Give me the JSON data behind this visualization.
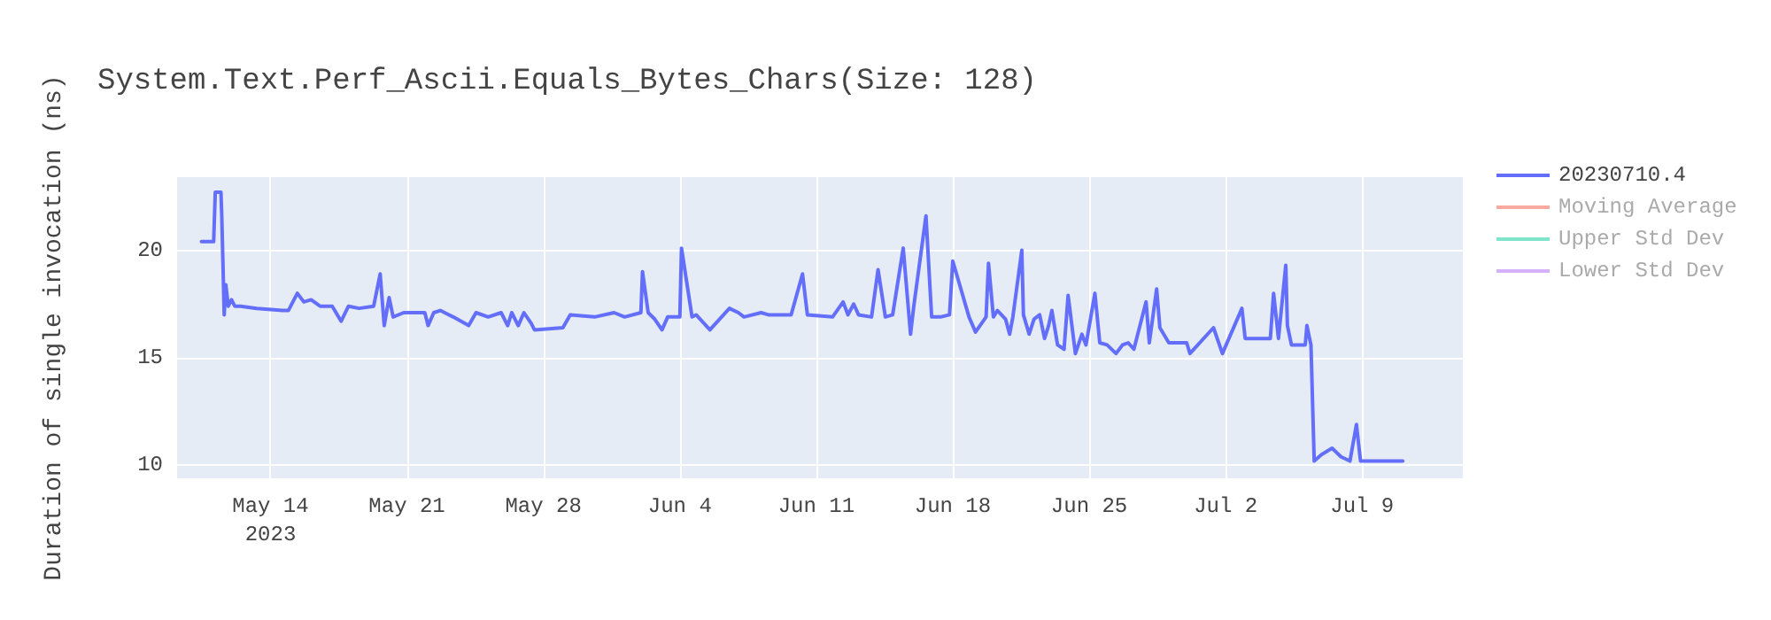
{
  "chart_data": {
    "type": "line",
    "title": "System.Text.Perf_Ascii.Equals_Bytes_Chars(Size: 128)",
    "ylabel": "Duration of single invocation (ns)",
    "x": [
      "2023-05-10T11:00",
      "2023-05-11T02:00",
      "2023-05-11T04:00",
      "2023-05-11T11:00",
      "2023-05-11T12:00",
      "2023-05-11T15:00",
      "2023-05-11T17:00",
      "2023-05-11T20:00",
      "2023-05-12T00:00",
      "2023-05-12T04:00",
      "2023-05-12T11:00",
      "2023-05-13T07:00",
      "2023-05-14T15:00",
      "2023-05-14T22:00",
      "2023-05-15T09:00",
      "2023-05-15T17:00",
      "2023-05-16T02:00",
      "2023-05-16T13:00",
      "2023-05-17T04:00",
      "2023-05-17T15:00",
      "2023-05-18T00:00",
      "2023-05-18T13:00",
      "2023-05-19T07:00",
      "2023-05-19T15:00",
      "2023-05-19T20:00",
      "2023-05-20T02:00",
      "2023-05-20T07:00",
      "2023-05-20T20:00",
      "2023-05-21T22:00",
      "2023-05-22T02:00",
      "2023-05-22T09:00",
      "2023-05-22T17:00",
      "2023-05-23T09:00",
      "2023-05-24T04:00",
      "2023-05-24T13:00",
      "2023-05-25T04:00",
      "2023-05-25T20:00",
      "2023-05-26T04:00",
      "2023-05-26T09:00",
      "2023-05-26T17:00",
      "2023-05-27T00:00",
      "2023-05-27T09:00",
      "2023-05-27T13:00",
      "2023-05-29T00:00",
      "2023-05-29T09:00",
      "2023-05-30T15:00",
      "2023-05-31T15:00",
      "2023-06-01T04:00",
      "2023-06-02T00:00",
      "2023-06-02T02:00",
      "2023-06-02T09:00",
      "2023-06-02T17:00",
      "2023-06-03T02:00",
      "2023-06-03T09:00",
      "2023-06-04T00:00",
      "2023-06-04T02:00",
      "2023-06-04T15:00",
      "2023-06-04T20:00",
      "2023-06-05T13:00",
      "2023-06-06T13:00",
      "2023-06-07T00:00",
      "2023-06-07T07:00",
      "2023-06-08T04:00",
      "2023-06-08T13:00",
      "2023-06-09T17:00",
      "2023-06-10T07:00",
      "2023-06-10T13:00",
      "2023-06-11T20:00",
      "2023-06-12T09:00",
      "2023-06-12T15:00",
      "2023-06-12T22:00",
      "2023-06-13T04:00",
      "2023-06-13T20:00",
      "2023-06-14T04:00",
      "2023-06-14T13:00",
      "2023-06-14T22:00",
      "2023-06-15T11:00",
      "2023-06-15T20:00",
      "2023-06-16T00:00",
      "2023-06-16T15:00",
      "2023-06-16T22:00",
      "2023-06-17T09:00",
      "2023-06-17T20:00",
      "2023-06-18T00:00",
      "2023-06-18T20:00",
      "2023-06-19T04:00",
      "2023-06-19T17:00",
      "2023-06-19T20:00",
      "2023-06-20T02:00",
      "2023-06-20T07:00",
      "2023-06-20T17:00",
      "2023-06-20T22:00",
      "2023-06-21T02:00",
      "2023-06-21T13:00",
      "2023-06-21T15:00",
      "2023-06-21T22:00",
      "2023-06-22T04:00",
      "2023-06-22T11:00",
      "2023-06-22T17:00",
      "2023-06-22T22:00",
      "2023-06-23T02:00",
      "2023-06-23T09:00",
      "2023-06-23T17:00",
      "2023-06-23T22:00",
      "2023-06-24T07:00",
      "2023-06-24T15:00",
      "2023-06-24T20:00",
      "2023-06-25T07:00",
      "2023-06-25T13:00",
      "2023-06-25T22:00",
      "2023-06-26T09:00",
      "2023-06-26T17:00",
      "2023-06-27T00:00",
      "2023-06-27T07:00",
      "2023-06-27T22:00",
      "2023-06-28T02:00",
      "2023-06-28T11:00",
      "2023-06-28T15:00",
      "2023-06-29T02:00",
      "2023-06-30T00:00",
      "2023-06-30T04:00",
      "2023-07-01T09:00",
      "2023-07-01T20:00",
      "2023-07-02T20:00",
      "2023-07-03T00:00",
      "2023-07-04T07:00",
      "2023-07-04T11:00",
      "2023-07-04T17:00",
      "2023-07-05T02:00",
      "2023-07-05T04:00",
      "2023-07-05T09:00",
      "2023-07-06T02:00",
      "2023-07-06T04:00",
      "2023-07-06T09:00",
      "2023-07-06T13:00",
      "2023-07-06T22:00",
      "2023-07-07T11:00",
      "2023-07-07T22:00",
      "2023-07-08T09:00",
      "2023-07-08T17:00",
      "2023-07-08T22:00",
      "2023-07-11T02:00"
    ],
    "series": [
      {
        "name": "20230710.4",
        "color": "#636efa",
        "values": [
          20.4,
          20.4,
          22.7,
          22.7,
          21.6,
          17.0,
          18.4,
          17.4,
          17.7,
          17.4,
          17.4,
          17.3,
          17.2,
          17.2,
          18.0,
          17.6,
          17.7,
          17.4,
          17.4,
          16.7,
          17.4,
          17.3,
          17.4,
          18.9,
          16.5,
          17.8,
          16.9,
          17.1,
          17.1,
          16.5,
          17.1,
          17.2,
          16.9,
          16.5,
          17.1,
          16.9,
          17.1,
          16.5,
          17.1,
          16.5,
          17.1,
          16.6,
          16.3,
          16.4,
          17.0,
          16.9,
          17.1,
          16.9,
          17.1,
          19.0,
          17.1,
          16.8,
          16.3,
          16.9,
          16.9,
          20.1,
          16.9,
          17.0,
          16.3,
          17.3,
          17.1,
          16.9,
          17.1,
          17.0,
          17.0,
          18.9,
          17.0,
          16.9,
          17.6,
          17.0,
          17.5,
          17.0,
          16.9,
          19.1,
          16.9,
          17.0,
          20.1,
          16.1,
          17.4,
          21.6,
          16.9,
          16.9,
          17.0,
          19.5,
          16.9,
          16.2,
          16.9,
          19.4,
          16.9,
          17.2,
          16.8,
          16.1,
          16.9,
          20.0,
          17.0,
          16.1,
          16.8,
          17.0,
          15.9,
          16.5,
          17.2,
          15.6,
          15.4,
          17.9,
          15.2,
          16.1,
          15.6,
          18.0,
          15.7,
          15.6,
          15.2,
          15.6,
          15.7,
          15.4,
          17.6,
          15.7,
          18.2,
          16.4,
          15.7,
          15.7,
          15.2,
          16.4,
          15.2,
          17.3,
          15.9,
          15.9,
          18.0,
          15.9,
          19.3,
          16.5,
          15.6,
          15.6,
          16.5,
          15.6,
          10.2,
          10.5,
          10.8,
          10.4,
          10.2,
          11.9,
          10.2,
          10.2
        ]
      },
      {
        "name": "Moving Average",
        "color": "#ef553b",
        "values": [
          null,
          null,
          null,
          null,
          null,
          null,
          null,
          null,
          null,
          null,
          null,
          null,
          null,
          null,
          null,
          null,
          null,
          null,
          null,
          null,
          null,
          null,
          null,
          null,
          null,
          null,
          null,
          null,
          null,
          null,
          null,
          null,
          null,
          null,
          null,
          null,
          null,
          null,
          null,
          null,
          null,
          null,
          null,
          null,
          null,
          null,
          null,
          null,
          null,
          null,
          null,
          null,
          null,
          null,
          null,
          null,
          null,
          null,
          null,
          null,
          null,
          null,
          null,
          null,
          null,
          null,
          null,
          null,
          null,
          null,
          null,
          null,
          null,
          null,
          null,
          null,
          null,
          null,
          null,
          null,
          null,
          null,
          null,
          null,
          null,
          null,
          null,
          null,
          null,
          null,
          null,
          null,
          null,
          null,
          null,
          null,
          null,
          null,
          null,
          null,
          null,
          null,
          null,
          null,
          null,
          null,
          null,
          null,
          null,
          null,
          null,
          null,
          null,
          null,
          null,
          null,
          null,
          null,
          null,
          null,
          null,
          null,
          null,
          null,
          null,
          null,
          null,
          null,
          null,
          null,
          null,
          null,
          null,
          null,
          null,
          null,
          null,
          null,
          null,
          null,
          null,
          null
        ]
      },
      {
        "name": "Upper Std Dev",
        "color": "#00cc96",
        "values": [
          null,
          null,
          null,
          null,
          null,
          null,
          null,
          null,
          null,
          null,
          null,
          null,
          null,
          null,
          null,
          null,
          null,
          null,
          null,
          null,
          null,
          null,
          null,
          null,
          null,
          null,
          null,
          null,
          null,
          null,
          null,
          null,
          null,
          null,
          null,
          null,
          null,
          null,
          null,
          null,
          null,
          null,
          null,
          null,
          null,
          null,
          null,
          null,
          null,
          null,
          null,
          null,
          null,
          null,
          null,
          null,
          null,
          null,
          null,
          null,
          null,
          null,
          null,
          null,
          null,
          null,
          null,
          null,
          null,
          null,
          null,
          null,
          null,
          null,
          null,
          null,
          null,
          null,
          null,
          null,
          null,
          null,
          null,
          null,
          null,
          null,
          null,
          null,
          null,
          null,
          null,
          null,
          null,
          null,
          null,
          null,
          null,
          null,
          null,
          null,
          null,
          null,
          null,
          null,
          null,
          null,
          null,
          null,
          null,
          null,
          null,
          null,
          null,
          null,
          null,
          null,
          null,
          null,
          null,
          null,
          null,
          null,
          null,
          null,
          null,
          null,
          null,
          null,
          null,
          null,
          null,
          null,
          null,
          null,
          null,
          null,
          null,
          null,
          null,
          null,
          null,
          null
        ]
      },
      {
        "name": "Lower Std Dev",
        "color": "#ab63fa",
        "values": [
          null,
          null,
          null,
          null,
          null,
          null,
          null,
          null,
          null,
          null,
          null,
          null,
          null,
          null,
          null,
          null,
          null,
          null,
          null,
          null,
          null,
          null,
          null,
          null,
          null,
          null,
          null,
          null,
          null,
          null,
          null,
          null,
          null,
          null,
          null,
          null,
          null,
          null,
          null,
          null,
          null,
          null,
          null,
          null,
          null,
          null,
          null,
          null,
          null,
          null,
          null,
          null,
          null,
          null,
          null,
          null,
          null,
          null,
          null,
          null,
          null,
          null,
          null,
          null,
          null,
          null,
          null,
          null,
          null,
          null,
          null,
          null,
          null,
          null,
          null,
          null,
          null,
          null,
          null,
          null,
          null,
          null,
          null,
          null,
          null,
          null,
          null,
          null,
          null,
          null,
          null,
          null,
          null,
          null,
          null,
          null,
          null,
          null,
          null,
          null,
          null,
          null,
          null,
          null,
          null,
          null,
          null,
          null,
          null,
          null,
          null,
          null,
          null,
          null,
          null,
          null,
          null,
          null,
          null,
          null,
          null,
          null,
          null,
          null,
          null,
          null,
          null,
          null,
          null,
          null,
          null,
          null,
          null,
          null,
          null,
          null,
          null,
          null,
          null,
          null,
          null,
          null
        ]
      }
    ],
    "xlim": [
      "2023-05-09T05:00",
      "2023-07-14T04:00"
    ],
    "xticks": [
      {
        "value": "2023-05-14T00:00",
        "label": "May 14\n2023"
      },
      {
        "value": "2023-05-21T00:00",
        "label": "May 21"
      },
      {
        "value": "2023-05-28T00:00",
        "label": "May 28"
      },
      {
        "value": "2023-06-04T00:00",
        "label": "Jun 4"
      },
      {
        "value": "2023-06-11T00:00",
        "label": "Jun 11"
      },
      {
        "value": "2023-06-18T00:00",
        "label": "Jun 18"
      },
      {
        "value": "2023-06-25T00:00",
        "label": "Jun 25"
      },
      {
        "value": "2023-07-02T00:00",
        "label": "Jul 2"
      },
      {
        "value": "2023-07-09T00:00",
        "label": "Jul 9"
      }
    ],
    "ylim": [
      9.4,
      23.4
    ],
    "yticks": [
      10,
      15,
      20
    ],
    "grid": true,
    "legend": "top right",
    "line_style": "solid"
  }
}
